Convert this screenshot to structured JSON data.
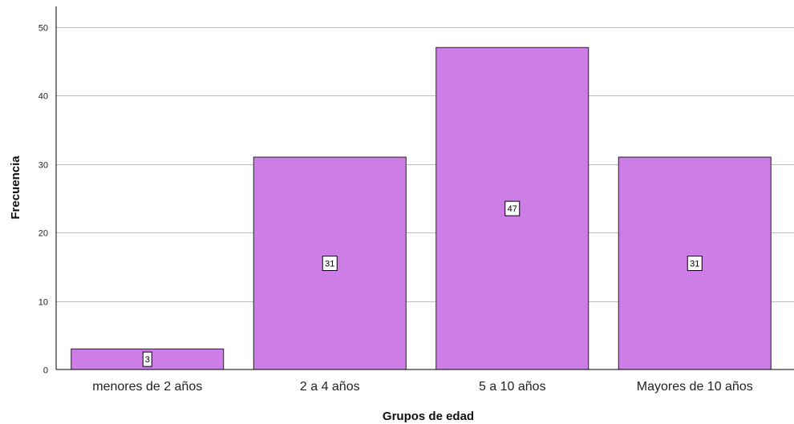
{
  "chart_data": {
    "type": "bar",
    "categories": [
      "menores de 2 años",
      "2 a 4 años",
      "5 a 10 años",
      "Mayores de 10 años"
    ],
    "values": [
      3,
      31,
      47,
      31
    ],
    "data_labels": [
      "3",
      "31",
      "47",
      "31"
    ],
    "xlabel": "Grupos de edad",
    "ylabel": "Frecuencia",
    "ylim": [
      0,
      53
    ],
    "yticks": [
      0,
      10,
      20,
      30,
      40,
      50
    ],
    "grid": true,
    "colors": {
      "bar_fill": "#cc7ee6",
      "bar_stroke": "#222222",
      "grid": "#bdbdbd",
      "axis": "#000000"
    }
  }
}
